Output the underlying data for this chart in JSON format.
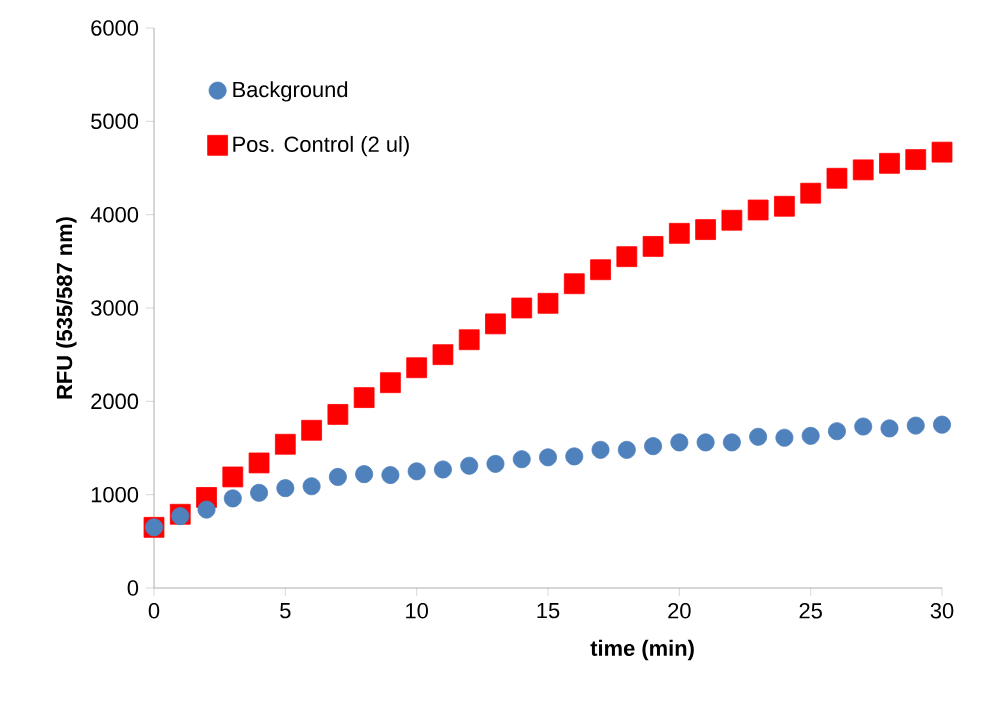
{
  "chart_data": {
    "type": "scatter",
    "xlabel": "time (min)",
    "ylabel": "RFU (535/587 nm)",
    "x": [
      0,
      1,
      2,
      3,
      4,
      5,
      6,
      7,
      8,
      9,
      10,
      11,
      12,
      13,
      14,
      15,
      16,
      17,
      18,
      19,
      20,
      21,
      22,
      23,
      24,
      25,
      26,
      27,
      28,
      29,
      30
    ],
    "series": [
      {
        "name": "Background",
        "color": "#4f81bd",
        "marker": "circle",
        "values": [
          650,
          770,
          840,
          960,
          1020,
          1070,
          1090,
          1190,
          1220,
          1210,
          1250,
          1270,
          1310,
          1330,
          1380,
          1400,
          1410,
          1480,
          1480,
          1520,
          1560,
          1560,
          1560,
          1620,
          1610,
          1630,
          1680,
          1730,
          1710,
          1740,
          1750
        ]
      },
      {
        "name": "Pos. Control (2 ul)",
        "color": "#ff0000",
        "marker": "square",
        "values": [
          650,
          790,
          970,
          1190,
          1340,
          1540,
          1690,
          1860,
          2040,
          2200,
          2360,
          2500,
          2660,
          2830,
          3000,
          3050,
          3260,
          3410,
          3550,
          3660,
          3800,
          3840,
          3940,
          4050,
          4090,
          4230,
          4390,
          4480,
          4550,
          4590,
          4670
        ]
      }
    ],
    "xlim": [
      0,
      30
    ],
    "xticks": [
      0,
      5,
      10,
      15,
      20,
      25,
      30
    ],
    "ylim": [
      0,
      6000
    ],
    "yticks": [
      0,
      1000,
      2000,
      3000,
      4000,
      5000,
      6000
    ],
    "legend": "top left",
    "grid": false
  }
}
